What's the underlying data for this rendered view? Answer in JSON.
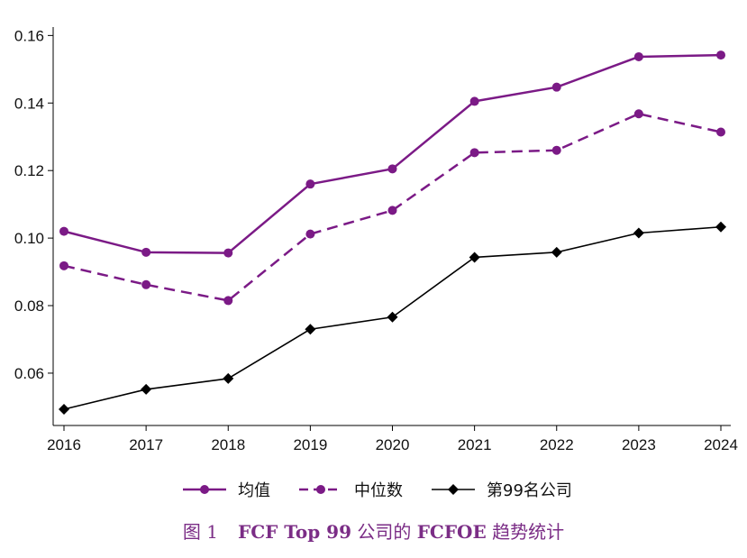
{
  "chart_data": {
    "type": "line",
    "title": "",
    "xlabel": "",
    "ylabel": "",
    "categories": [
      "2016",
      "2017",
      "2018",
      "2019",
      "2020",
      "2021",
      "2022",
      "2023",
      "2024"
    ],
    "ylim": [
      0.0445,
      0.1625
    ],
    "yticks": [
      "0.06",
      "0.08",
      "0.10",
      "0.12",
      "0.14",
      "0.16"
    ],
    "ytick_values": [
      0.06,
      0.08,
      0.1,
      0.12,
      0.14,
      0.16
    ],
    "grid": false,
    "legend_position": "bottom",
    "series": [
      {
        "name": "均值",
        "values": [
          0.102,
          0.0958,
          0.0956,
          0.116,
          0.1205,
          0.1405,
          0.1447,
          0.1537,
          0.1542
        ],
        "color": "#7b1a86",
        "dash": "solid",
        "marker": "circle"
      },
      {
        "name": "中位数",
        "values": [
          0.0918,
          0.0862,
          0.0815,
          0.1012,
          0.1082,
          0.1253,
          0.126,
          0.1368,
          0.1314
        ],
        "color": "#7b1a86",
        "dash": "dashed",
        "marker": "circle"
      },
      {
        "name": "第99名公司",
        "values": [
          0.0493,
          0.0552,
          0.0584,
          0.073,
          0.0766,
          0.0943,
          0.0958,
          0.1015,
          0.1033
        ],
        "color": "#000000",
        "dash": "solid",
        "marker": "diamond"
      }
    ]
  },
  "caption": {
    "figure_num": "图 1",
    "part1": "FCF Top 99",
    "part2": " 公司的 ",
    "part3": "FCFOE",
    "part4": " 趋势统计"
  }
}
